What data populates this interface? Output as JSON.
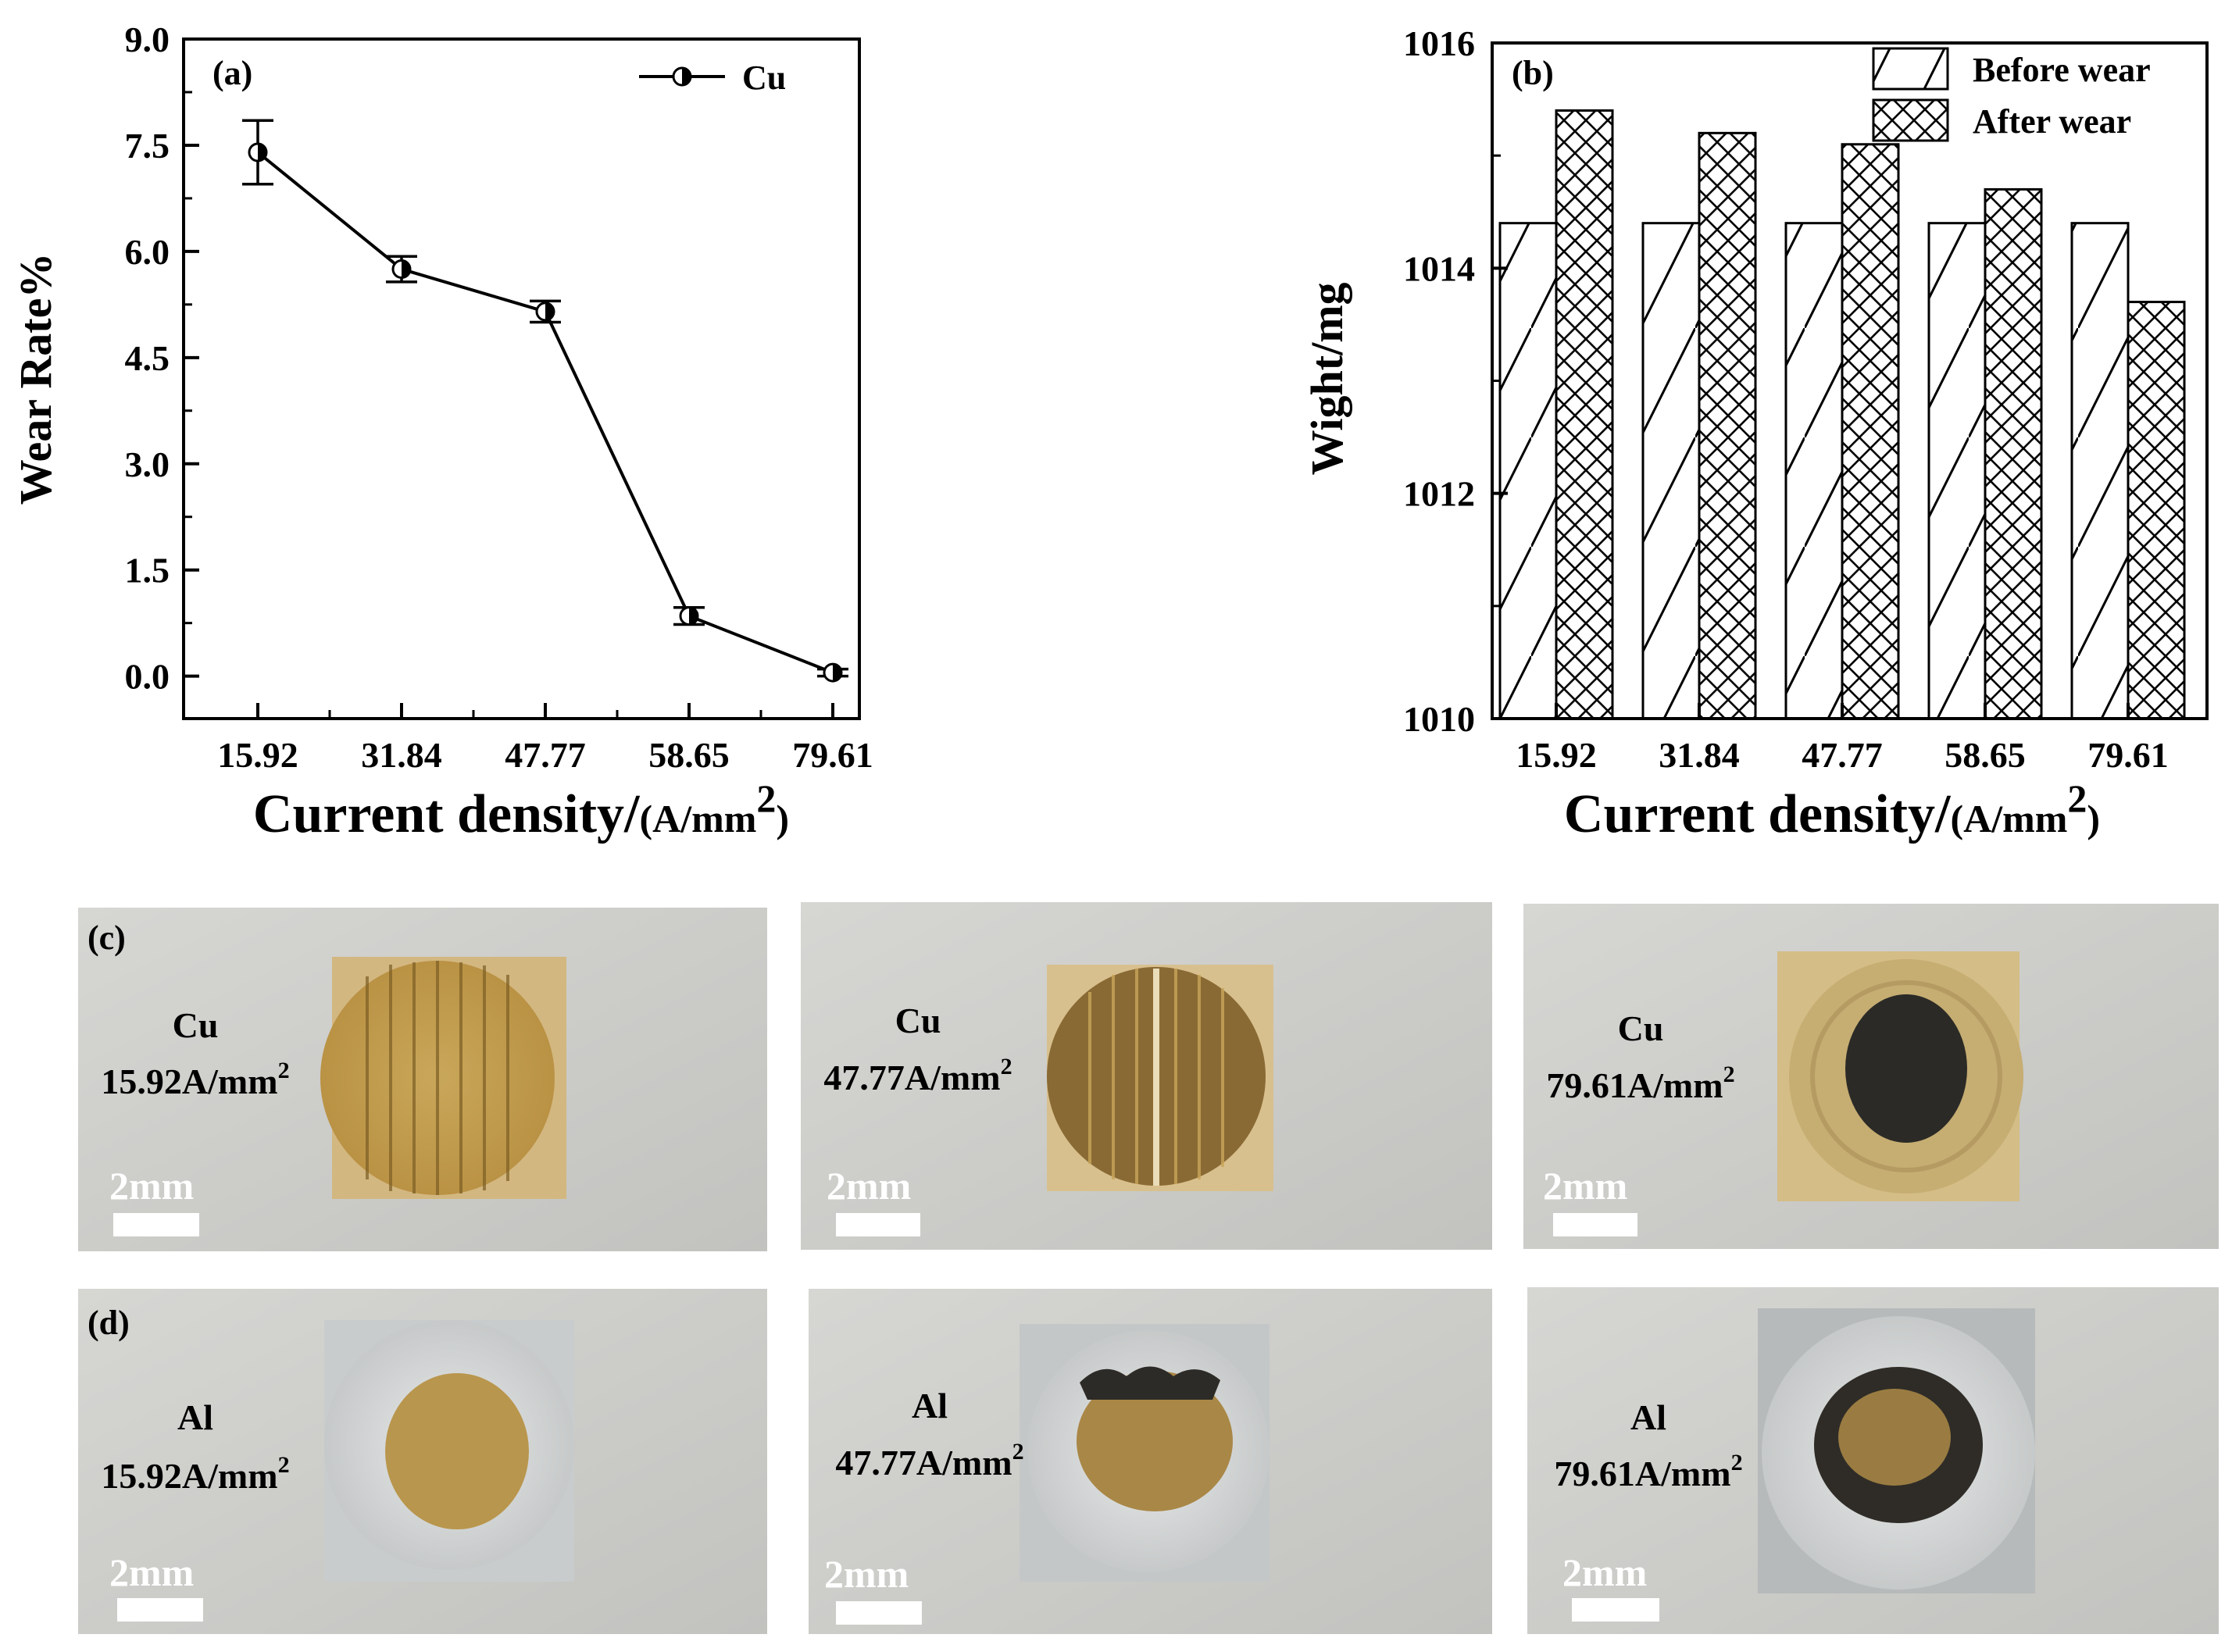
{
  "chart_data": [
    {
      "type": "line",
      "panel_label": "(a)",
      "categories": [
        "15.92",
        "31.84",
        "47.77",
        "58.65",
        "79.61"
      ],
      "series": [
        {
          "name": "Cu",
          "values": [
            7.4,
            5.75,
            5.15,
            0.85,
            0.05
          ],
          "error": [
            0.45,
            0.18,
            0.15,
            0.12,
            0.05
          ]
        }
      ],
      "ylabel": "Wear Rate%",
      "xlabel": "Current density/",
      "xlabel_unit": "(A/mm",
      "xlabel_unit_sup": "2",
      "xlabel_unit_close": ")",
      "ylim": [
        -0.6,
        9.0
      ],
      "yticks": [
        "0.0",
        "1.5",
        "3.0",
        "4.5",
        "6.0",
        "7.5",
        "9.0"
      ],
      "ytick_values": [
        0,
        1.5,
        3.0,
        4.5,
        6.0,
        7.5,
        9.0
      ],
      "legend_position": "top-right"
    },
    {
      "type": "bar",
      "panel_label": "(b)",
      "categories": [
        "15.92",
        "31.84",
        "47.77",
        "58.65",
        "79.61"
      ],
      "series": [
        {
          "name": "Before wear",
          "pattern": "diagonal-hatch",
          "values": [
            1014.4,
            1014.4,
            1014.4,
            1014.4,
            1014.4
          ]
        },
        {
          "name": "After wear",
          "pattern": "cross-hatch",
          "values": [
            1015.4,
            1015.2,
            1015.1,
            1014.7,
            1013.7
          ]
        }
      ],
      "ylabel": "Wight/mg",
      "xlabel": "Current density/",
      "xlabel_unit": "(A/mm",
      "xlabel_unit_sup": "2",
      "xlabel_unit_close": ")",
      "ylim": [
        1010,
        1016
      ],
      "yticks": [
        "1010",
        "1012",
        "1014",
        "1016"
      ],
      "ytick_values": [
        1010,
        1012,
        1014,
        1016
      ],
      "legend_position": "top-right"
    }
  ],
  "photos": {
    "row_c_label": "(c)",
    "row_d_label": "(d)",
    "scale": "2mm",
    "unit_sup": "2",
    "row_c": [
      {
        "material": "Cu",
        "density": "15.92A/mm"
      },
      {
        "material": "Cu",
        "density": "47.77A/mm"
      },
      {
        "material": "Cu",
        "density": "79.61A/mm"
      }
    ],
    "row_d": [
      {
        "material": "Al",
        "density": "15.92A/mm"
      },
      {
        "material": "Al",
        "density": "47.77A/mm"
      },
      {
        "material": "Al",
        "density": "79.61A/mm"
      }
    ]
  }
}
